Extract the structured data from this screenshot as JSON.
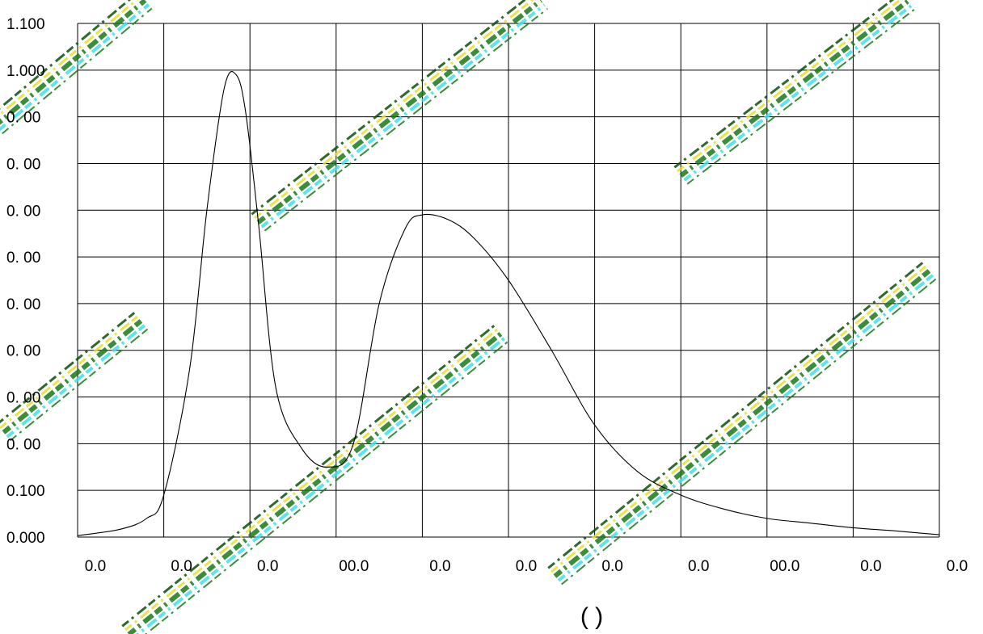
{
  "chart_data": {
    "type": "line",
    "title": "",
    "xlabel": "(        )",
    "ylabel": "",
    "xlim": [
      0,
      10
    ],
    "ylim": [
      0,
      1.1
    ],
    "grid": true,
    "y_tick_values": [
      0,
      0.1,
      0.2,
      0.3,
      0.4,
      0.5,
      0.6,
      0.7,
      0.8,
      0.9,
      1.0,
      1.1
    ],
    "y_tick_labels": [
      "0.000",
      "0.100",
      "0. 00",
      "0. 00",
      "0. 00",
      "0. 00",
      "0. 00",
      "0. 00",
      "0. 00",
      "0. 00",
      "1.000",
      "1.100"
    ],
    "x_tick_values": [
      0,
      1,
      2,
      3,
      4,
      5,
      6,
      7,
      8,
      9,
      10
    ],
    "x_tick_labels": [
      "0.0",
      "0.0",
      "0.0",
      "00.0",
      "0.0",
      "0.0",
      "0.0",
      "0.0",
      "00.0",
      "0.0",
      "0.0"
    ],
    "series": [
      {
        "color": "#000000",
        "x": [
          0,
          0.5,
          0.8,
          1.0,
          1.3,
          1.5,
          1.7,
          1.84,
          1.95,
          2.1,
          2.3,
          2.6,
          2.9,
          3.2,
          3.5,
          3.8,
          4.0,
          4.3,
          4.6,
          5.0,
          5.5,
          6.0,
          6.5,
          7.0,
          7.5,
          8.0,
          8.5,
          9.0,
          9.5,
          10.0
        ],
        "y": [
          0.003,
          0.017,
          0.04,
          0.09,
          0.36,
          0.7,
          0.96,
          0.99,
          0.91,
          0.67,
          0.32,
          0.19,
          0.15,
          0.2,
          0.5,
          0.66,
          0.69,
          0.68,
          0.64,
          0.55,
          0.4,
          0.24,
          0.14,
          0.09,
          0.06,
          0.04,
          0.03,
          0.02,
          0.013,
          0.005
        ]
      }
    ]
  },
  "watermark": {
    "colors": [
      "#1a7a1a",
      "#0b4f0b",
      "#3fe0ee",
      "#e8e02a",
      "#5a3a1a"
    ]
  }
}
